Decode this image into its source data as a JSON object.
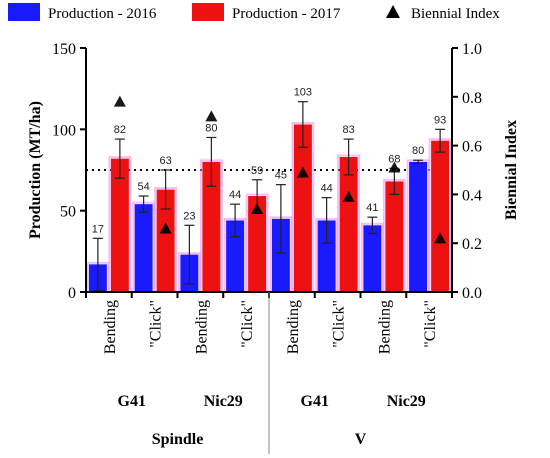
{
  "chart_data": {
    "type": "bar",
    "legend": [
      {
        "label": "Production - 2016",
        "color": "#1a1aff",
        "marker": "square"
      },
      {
        "label": "Production - 2017",
        "color": "#ee1111",
        "marker": "square"
      },
      {
        "label": "Biennial Index",
        "color": "#000000",
        "marker": "triangle"
      }
    ],
    "legend_position": "top",
    "ylabel": "Production (MT/ha)",
    "y2label": "Biennial Index",
    "ylim": [
      0,
      150
    ],
    "y2lim": [
      0,
      1.0
    ],
    "yticks": [
      "0",
      "50",
      "100",
      "150"
    ],
    "y2ticks": [
      "0.0",
      "0.2",
      "0.4",
      "0.6",
      "0.8",
      "1.0"
    ],
    "reference_line_y2": 0.5,
    "categories": [
      {
        "label": "Bending",
        "cultivar": "G41",
        "system": "Spindle"
      },
      {
        "label": "\"Click\"",
        "cultivar": "G41",
        "system": "Spindle"
      },
      {
        "label": "Bending",
        "cultivar": "Nic29",
        "system": "Spindle"
      },
      {
        "label": "\"Click\"",
        "cultivar": "Nic29",
        "system": "Spindle"
      },
      {
        "label": "Bending",
        "cultivar": "G41",
        "system": "V"
      },
      {
        "label": "\"Click\"",
        "cultivar": "G41",
        "system": "V"
      },
      {
        "label": "Bending",
        "cultivar": "Nic29",
        "system": "V"
      },
      {
        "label": "\"Click\"",
        "cultivar": "Nic29",
        "system": "V"
      }
    ],
    "cultivar_labels": [
      "G41",
      "Nic29",
      "G41",
      "Nic29"
    ],
    "system_labels": [
      "Spindle",
      "V"
    ],
    "series": [
      {
        "name": "Production - 2016",
        "color": "#1a1aff",
        "values": [
          17,
          54,
          23,
          44,
          45,
          44,
          41,
          80
        ],
        "labels": [
          "17",
          "54",
          "23",
          "44",
          "45",
          "44",
          "41",
          "80"
        ],
        "errors": [
          16,
          5,
          18,
          10,
          21,
          14,
          5,
          1
        ]
      },
      {
        "name": "Production - 2017",
        "color": "#ee1111",
        "values": [
          82,
          63,
          80,
          59,
          103,
          83,
          68,
          93
        ],
        "labels": [
          "82",
          "63",
          "80",
          "59",
          "103",
          "83",
          "68",
          "93"
        ],
        "errors": [
          12,
          12,
          15,
          10,
          14,
          11,
          8,
          7
        ]
      }
    ],
    "biennial_index": [
      0.78,
      0.26,
      0.72,
      0.34,
      0.49,
      0.39,
      0.51,
      0.22
    ]
  }
}
